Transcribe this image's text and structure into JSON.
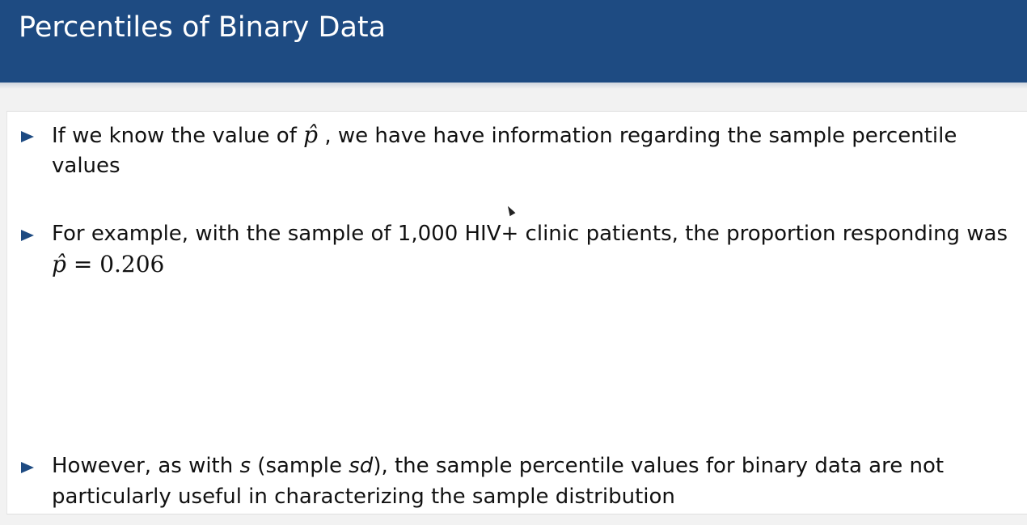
{
  "slide": {
    "title": "Percentiles of Binary Data"
  },
  "bullets": [
    {
      "line1_a": "If we know the value of ",
      "line1_math": "p̂",
      "line1_b": " , we have have information regarding the sample percentile",
      "line2": "values"
    },
    {
      "line1": "For example, with the sample of 1,000 HIV+ clinic patients, the proportion responding was",
      "line2_math_var": "p̂",
      "line2_math_rest": " = 0.206"
    },
    {
      "line1_a": "However, as with ",
      "line1_s": "s",
      "line1_b": " (sample ",
      "line1_sd": "sd",
      "line1_c": "), the sample percentile values for binary data are not",
      "line2": "particularly useful in characterizing the sample distribution"
    }
  ],
  "colors": {
    "header_bg": "#1e4b82",
    "bullet_arrow": "#1e4b82"
  },
  "icons": {
    "bullet": "triangle-right-icon",
    "pointer": "mouse-cursor-icon"
  }
}
